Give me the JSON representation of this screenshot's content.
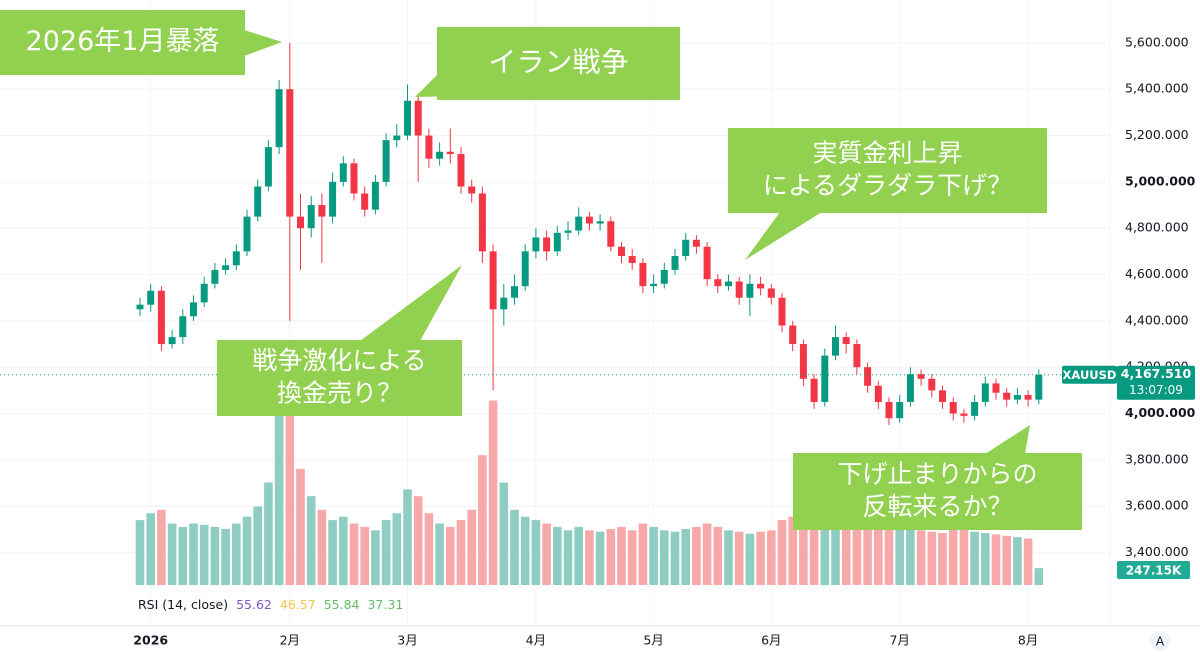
{
  "chart_data": {
    "type": "candlestick",
    "symbol": "XAUUSD",
    "categories": [
      null,
      "2026",
      null,
      null,
      null,
      null,
      null,
      null,
      null,
      null,
      null,
      null,
      null,
      null,
      "2月",
      null,
      null,
      null,
      null,
      null,
      null,
      null,
      null,
      null,
      null,
      "3月",
      null,
      null,
      null,
      null,
      null,
      null,
      null,
      null,
      null,
      null,
      null,
      "4月",
      null,
      null,
      null,
      null,
      null,
      null,
      null,
      null,
      null,
      null,
      "5月",
      null,
      null,
      null,
      null,
      null,
      null,
      null,
      null,
      null,
      null,
      "6月",
      null,
      null,
      null,
      null,
      null,
      null,
      null,
      null,
      null,
      null,
      null,
      "7月",
      null,
      null,
      null,
      null,
      null,
      null,
      null,
      null,
      null,
      null,
      null,
      "8月",
      null
    ],
    "open": [
      4450,
      4470,
      4530,
      4300,
      4330,
      4420,
      4480,
      4560,
      4620,
      4640,
      4700,
      4850,
      4980,
      5150,
      5400,
      4850,
      4800,
      4900,
      4850,
      5000,
      5080,
      4950,
      4880,
      5000,
      5180,
      5200,
      5350,
      5200,
      5100,
      5130,
      5120,
      4980,
      4950,
      4700,
      4450,
      4500,
      4550,
      4700,
      4760,
      4700,
      4780,
      4790,
      4850,
      4820,
      4830,
      4720,
      4680,
      4650,
      4550,
      4560,
      4620,
      4680,
      4750,
      4720,
      4580,
      4550,
      4570,
      4500,
      4560,
      4540,
      4500,
      4380,
      4300,
      4150,
      4050,
      4250,
      4330,
      4300,
      4200,
      4120,
      4050,
      3980,
      4050,
      4170,
      4150,
      4100,
      4050,
      4000,
      3990,
      4050,
      4130,
      4090,
      4060,
      4080,
      4060
    ],
    "high": [
      4500,
      4560,
      4550,
      4360,
      4450,
      4510,
      4590,
      4650,
      4670,
      4730,
      4880,
      5010,
      5180,
      5440,
      5600,
      4950,
      4940,
      4950,
      5040,
      5110,
      5100,
      4980,
      5030,
      5210,
      5250,
      5420,
      5380,
      5230,
      5170,
      5230,
      5150,
      5010,
      4980,
      4730,
      4560,
      4600,
      4730,
      4800,
      4790,
      4810,
      4830,
      4890,
      4870,
      4860,
      4850,
      4740,
      4710,
      4670,
      4600,
      4650,
      4710,
      4780,
      4770,
      4740,
      4600,
      4600,
      4590,
      4600,
      4590,
      4560,
      4520,
      4400,
      4320,
      4170,
      4280,
      4380,
      4350,
      4320,
      4220,
      4140,
      4070,
      4080,
      4200,
      4190,
      4170,
      4120,
      4070,
      4020,
      4080,
      4160,
      4150,
      4110,
      4110,
      4100,
      4190
    ],
    "low": [
      4420,
      4440,
      4270,
      4280,
      4300,
      4400,
      4460,
      4540,
      4600,
      4620,
      4680,
      4830,
      4960,
      5120,
      4400,
      4620,
      4760,
      4650,
      4820,
      4980,
      4920,
      4850,
      4860,
      4980,
      5150,
      5180,
      5000,
      5060,
      5070,
      5080,
      4950,
      4910,
      4650,
      4100,
      4380,
      4470,
      4530,
      4670,
      4660,
      4680,
      4750,
      4770,
      4790,
      4790,
      4700,
      4650,
      4620,
      4520,
      4520,
      4540,
      4600,
      4660,
      4690,
      4550,
      4520,
      4530,
      4470,
      4420,
      4510,
      4470,
      4350,
      4270,
      4120,
      4020,
      4030,
      4230,
      4260,
      4170,
      4090,
      4020,
      3950,
      3960,
      4030,
      4120,
      4070,
      4020,
      3970,
      3960,
      3970,
      4030,
      4060,
      4030,
      4040,
      4030,
      4040
    ],
    "close": [
      4470,
      4530,
      4300,
      4330,
      4420,
      4480,
      4560,
      4620,
      4640,
      4700,
      4850,
      4980,
      5150,
      5400,
      4850,
      4800,
      4900,
      4850,
      5000,
      5080,
      4950,
      4880,
      5000,
      5180,
      5200,
      5350,
      5200,
      5100,
      5130,
      5120,
      4980,
      4950,
      4700,
      4450,
      4500,
      4550,
      4700,
      4760,
      4700,
      4780,
      4790,
      4850,
      4820,
      4830,
      4720,
      4680,
      4650,
      4550,
      4560,
      4620,
      4680,
      4750,
      4720,
      4580,
      4550,
      4570,
      4500,
      4560,
      4540,
      4500,
      4380,
      4300,
      4150,
      4050,
      4250,
      4330,
      4300,
      4200,
      4120,
      4050,
      3980,
      4050,
      4170,
      4150,
      4100,
      4050,
      4000,
      3990,
      4050,
      4130,
      4090,
      4060,
      4080,
      4060,
      4167.51
    ],
    "volume": [
      950,
      1050,
      1100,
      900,
      850,
      900,
      880,
      850,
      820,
      900,
      1000,
      1150,
      1500,
      2500,
      2800,
      1700,
      1300,
      1100,
      950,
      1000,
      900,
      850,
      800,
      950,
      1050,
      1400,
      1300,
      1050,
      900,
      850,
      950,
      1100,
      1900,
      2700,
      1500,
      1100,
      1000,
      950,
      900,
      850,
      800,
      850,
      800,
      780,
      820,
      850,
      800,
      900,
      850,
      800,
      780,
      820,
      850,
      900,
      850,
      800,
      780,
      750,
      780,
      800,
      950,
      1000,
      1050,
      1100,
      950,
      900,
      850,
      880,
      900,
      920,
      950,
      850,
      880,
      800,
      780,
      760,
      820,
      850,
      780,
      760,
      740,
      720,
      700,
      680,
      247.15
    ],
    "volume_lim": [
      0,
      3000
    ],
    "ylim": [
      3260,
      5785
    ],
    "yticks": [
      {
        "value": 3400,
        "label": "3,400.000"
      },
      {
        "value": 3600,
        "label": "3,600.000"
      },
      {
        "value": 3800,
        "label": "3,800.000"
      },
      {
        "value": 4000,
        "label": "4,000.000"
      },
      {
        "value": 4200,
        "label": "4,200.000"
      },
      {
        "value": 4400,
        "label": "4,400.000"
      },
      {
        "value": 4600,
        "label": "4,600.000"
      },
      {
        "value": 4800,
        "label": "4,800.000"
      },
      {
        "value": 5000,
        "label": "5,000.000"
      },
      {
        "value": 5200,
        "label": "5,200.000"
      },
      {
        "value": 5400,
        "label": "5,400.000"
      },
      {
        "value": 5600,
        "label": "5,600.000"
      }
    ],
    "up_color": "#089981",
    "down_color": "#f23645",
    "up_volume_color": "#8fcdc3",
    "down_volume_color": "#f7a8a8",
    "grid": true,
    "last_price": {
      "value": 4167.51,
      "label": "4,167.510"
    },
    "countdown": "13:07:09",
    "last_volume": {
      "value": 247.15,
      "label": "247.15K"
    },
    "rsi": {
      "label": "RSI (14, close)",
      "values": [
        55.62,
        46.57,
        55.84,
        37.31
      ],
      "colors": [
        "#7e57c2",
        "#f2c94c",
        "#66bb6a",
        "#66bb6a"
      ]
    },
    "annotations": [
      {
        "lines": [
          "2026年1月暴落"
        ]
      },
      {
        "lines": [
          "イラン戦争"
        ]
      },
      {
        "lines": [
          "実質金利上昇",
          "によるダラダラ下げ？"
        ]
      },
      {
        "lines": [
          "戦争激化による",
          "換金売り？"
        ]
      },
      {
        "lines": [
          "下げ止まりからの",
          "反転来るか？"
        ]
      }
    ],
    "annotation_color": "#92d050",
    "scale_button": "A"
  }
}
